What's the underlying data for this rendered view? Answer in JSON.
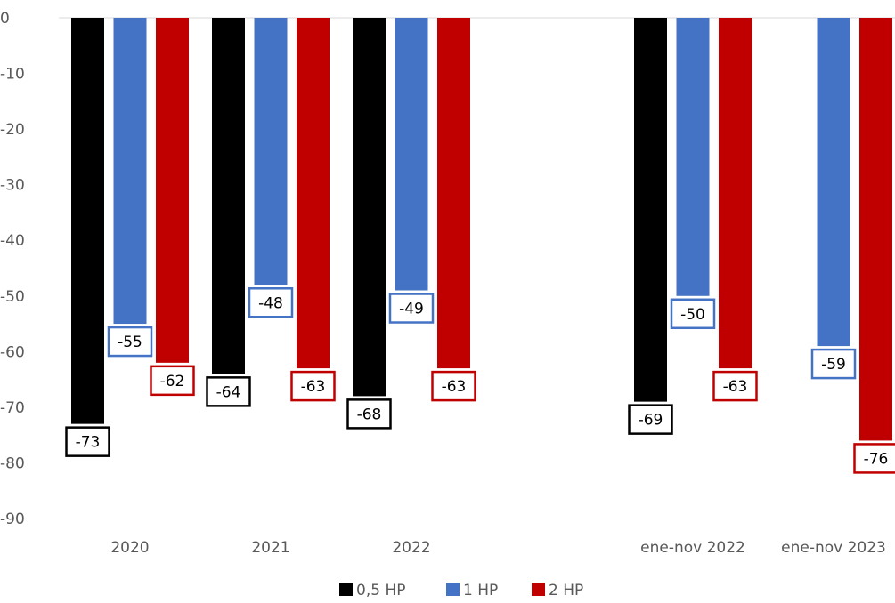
{
  "chart_data": {
    "type": "bar",
    "categories": [
      "2020",
      "2021",
      "2022",
      "",
      "ene-nov 2022",
      "ene-nov 2023"
    ],
    "series": [
      {
        "name": "0,5 HP",
        "color": "#000000",
        "values": [
          -73,
          -64,
          -68,
          null,
          -69,
          null
        ]
      },
      {
        "name": "1 HP",
        "color": "#4472C4",
        "values": [
          -55,
          -48,
          -49,
          null,
          -50,
          -59
        ]
      },
      {
        "name": "2 HP",
        "color": "#C00000",
        "values": [
          -62,
          -63,
          -63,
          null,
          -63,
          -76
        ]
      }
    ],
    "yticks": [
      "0",
      "-10",
      "-20",
      "-30",
      "-40",
      "-50",
      "-60",
      "-70",
      "-80",
      "-90"
    ],
    "ylim": [
      -90,
      0
    ],
    "grid": false,
    "legend": "bottom",
    "data_labels": true
  }
}
